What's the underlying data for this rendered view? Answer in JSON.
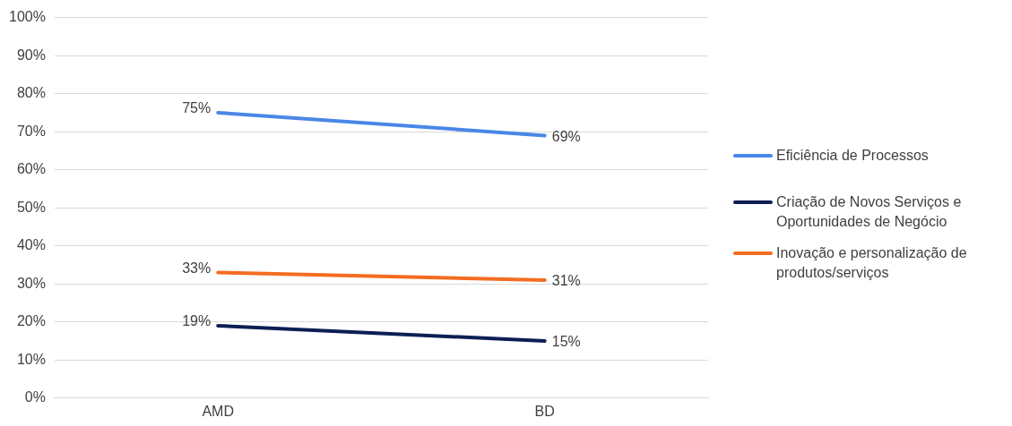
{
  "chart_data": {
    "type": "line",
    "categories": [
      "AMD",
      "BD"
    ],
    "series": [
      {
        "name": "Eficiência de Processos",
        "color": "#4a86e8",
        "values": [
          75,
          69
        ],
        "value_labels": [
          "75%",
          "69%"
        ]
      },
      {
        "name": "Criação de Novos Serviços e Oportunidades de Negócio",
        "color": "#0c1f54",
        "values": [
          19,
          15
        ],
        "value_labels": [
          "19%",
          "15%"
        ]
      },
      {
        "name": "Inovação e personalização de produtos/serviços",
        "color": "#f36c21",
        "values": [
          33,
          31
        ],
        "value_labels": [
          "33%",
          "31%"
        ]
      }
    ],
    "ylim": [
      0,
      100
    ],
    "yticks": [
      {
        "value": 0,
        "label": "0%"
      },
      {
        "value": 10,
        "label": "10%"
      },
      {
        "value": 20,
        "label": "20%"
      },
      {
        "value": 30,
        "label": "30%"
      },
      {
        "value": 40,
        "label": "40%"
      },
      {
        "value": 50,
        "label": "50%"
      },
      {
        "value": 60,
        "label": "60%"
      },
      {
        "value": 70,
        "label": "70%"
      },
      {
        "value": 80,
        "label": "80%"
      },
      {
        "value": 90,
        "label": "90%"
      },
      {
        "value": 100,
        "label": "100%"
      }
    ],
    "grid": "y",
    "legend": "right",
    "marker": "none",
    "line_style": "solid"
  }
}
